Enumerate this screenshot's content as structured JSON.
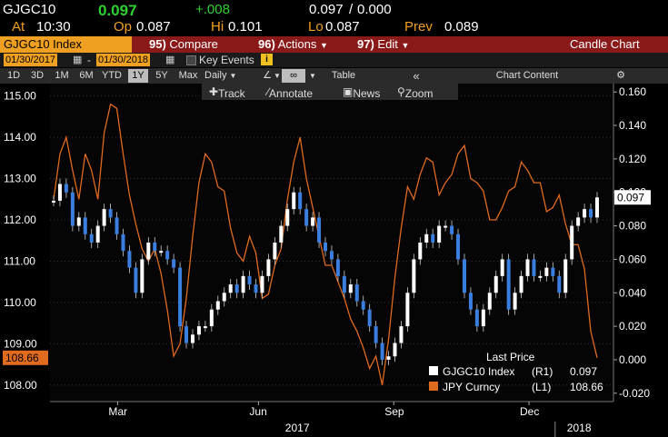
{
  "header": {
    "ticker": "GJGC10",
    "last": "0.097",
    "change": "+.008",
    "bid_label": "0.097",
    "ask_label": "0.000",
    "at_label": "At",
    "time": "10:30",
    "op_label": "Op",
    "op": "0.087",
    "hi_label": "Hi",
    "hi": "0.101",
    "lo_label": "Lo",
    "lo": "0.087",
    "prev_label": "Prev",
    "prev": "0.089"
  },
  "toolbar": {
    "security": "GJGC10 Index",
    "compare_num": "95)",
    "compare": "Compare",
    "actions_num": "96)",
    "actions": "Actions",
    "edit_num": "97)",
    "edit": "Edit",
    "chart_type": "Candle Chart"
  },
  "dates": {
    "start": "01/30/2017",
    "end": "01/30/2018",
    "key_events": "Key Events"
  },
  "ranges": {
    "items": [
      "1D",
      "3D",
      "1M",
      "6M",
      "YTD",
      "1Y",
      "5Y",
      "Max"
    ],
    "active": "1Y",
    "period": "Daily",
    "table": "Table",
    "chart_content": "Chart Content"
  },
  "tools": {
    "track": "Track",
    "annotate": "Annotate",
    "news": "News",
    "zoom": "Zoom"
  },
  "colors": {
    "price": "#ffffff",
    "jpy": "#e06a1e",
    "up": "#ffffff",
    "down": "#3a7fe0",
    "accent": "#f0a020"
  },
  "chart_data": {
    "type": "line",
    "x_labels": [
      "Mar",
      "Jun",
      "Sep",
      "Dec"
    ],
    "year_labels": [
      "2017",
      "2018"
    ],
    "left_axis": {
      "ticks": [
        "115.00",
        "114.00",
        "113.00",
        "112.00",
        "111.00",
        "110.00",
        "109.00",
        "108.00"
      ],
      "range": [
        107.6,
        115.3
      ]
    },
    "right_axis": {
      "ticks": [
        "0.160",
        "0.140",
        "0.120",
        "0.100",
        "0.080",
        "0.060",
        "0.040",
        "0.020",
        "0.000",
        "-0.020"
      ],
      "range": [
        -0.025,
        0.165
      ]
    },
    "legend": {
      "title": "Last Price",
      "entries": [
        {
          "name": "GJGC10 Index",
          "axis": "(R1)",
          "value": "0.097"
        },
        {
          "name": "JPY Curncy",
          "axis": "(L1)",
          "value": "108.66"
        }
      ]
    },
    "right_last_badge": "0.097",
    "left_last_badge": "108.66",
    "series": [
      {
        "name": "GJGC10 Index",
        "axis": "right",
        "values": [
          0.095,
          0.105,
          0.1,
          0.08,
          0.085,
          0.075,
          0.07,
          0.08,
          0.09,
          0.085,
          0.075,
          0.065,
          0.055,
          0.04,
          0.06,
          0.07,
          0.065,
          0.065,
          0.06,
          0.055,
          0.02,
          0.01,
          0.015,
          0.02,
          0.02,
          0.03,
          0.035,
          0.04,
          0.045,
          0.04,
          0.05,
          0.045,
          0.04,
          0.05,
          0.06,
          0.07,
          0.08,
          0.09,
          0.1,
          0.09,
          0.08,
          0.085,
          0.07,
          0.065,
          0.06,
          0.05,
          0.04,
          0.045,
          0.035,
          0.03,
          0.02,
          0.01,
          0.0,
          0.002,
          0.01,
          0.02,
          0.04,
          0.06,
          0.07,
          0.075,
          0.07,
          0.08,
          0.08,
          0.075,
          0.06,
          0.04,
          0.03,
          0.02,
          0.03,
          0.04,
          0.05,
          0.06,
          0.03,
          0.04,
          0.05,
          0.06,
          0.05,
          0.05,
          0.055,
          0.05,
          0.04,
          0.06,
          0.08,
          0.085,
          0.09,
          0.085,
          0.097
        ]
      },
      {
        "name": "JPY Curncy",
        "axis": "left",
        "values": [
          112.5,
          113.6,
          114.0,
          113.2,
          112.5,
          113.6,
          113.2,
          112.5,
          114.1,
          114.8,
          114.7,
          113.6,
          112.6,
          111.9,
          111.3,
          111.0,
          111.3,
          110.7,
          109.8,
          108.7,
          109.0,
          110.1,
          111.6,
          112.9,
          113.6,
          113.4,
          112.8,
          112.7,
          111.8,
          111.2,
          111.0,
          111.6,
          111.2,
          110.1,
          110.2,
          110.9,
          111.3,
          112.5,
          113.4,
          114.0,
          113.0,
          112.3,
          111.6,
          110.9,
          110.9,
          110.5,
          110.1,
          109.6,
          109.3,
          108.9,
          108.4,
          108.7,
          108.0,
          109.1,
          110.6,
          111.8,
          112.8,
          112.5,
          113.1,
          113.5,
          113.4,
          112.6,
          112.9,
          113.1,
          113.6,
          113.8,
          113.0,
          112.9,
          112.7,
          112.0,
          112.0,
          112.3,
          112.7,
          112.8,
          113.4,
          113.2,
          112.9,
          112.9,
          112.2,
          112.3,
          112.6,
          111.9,
          111.4,
          111.4,
          110.8,
          109.3,
          108.66
        ]
      }
    ]
  }
}
